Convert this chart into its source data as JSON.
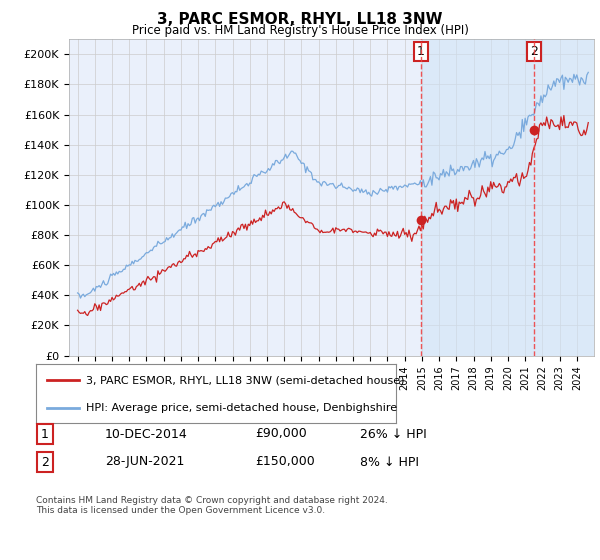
{
  "title": "3, PARC ESMOR, RHYL, LL18 3NW",
  "subtitle": "Price paid vs. HM Land Registry's House Price Index (HPI)",
  "background_color": "#ffffff",
  "grid_color": "#cccccc",
  "plot_bg_color": "#eaf0fb",
  "hpi_color": "#7aaadd",
  "price_color": "#cc2222",
  "sale1_date_num": 2014.94,
  "sale1_price": 90000,
  "sale2_date_num": 2021.5,
  "sale2_price": 150000,
  "sale1_label": "1",
  "sale2_label": "2",
  "vline_color": "#ee4444",
  "ylim": [
    0,
    210000
  ],
  "xlim_start": 1994.5,
  "xlim_end": 2025.0,
  "legend_label_price": "3, PARC ESMOR, RHYL, LL18 3NW (semi-detached house)",
  "legend_label_hpi": "HPI: Average price, semi-detached house, Denbighshire",
  "table_row1": [
    "1",
    "10-DEC-2014",
    "£90,000",
    "26% ↓ HPI"
  ],
  "table_row2": [
    "2",
    "28-JUN-2021",
    "£150,000",
    "8% ↓ HPI"
  ],
  "footnote": "Contains HM Land Registry data © Crown copyright and database right 2024.\nThis data is licensed under the Open Government Licence v3.0.",
  "yticks": [
    0,
    20000,
    40000,
    60000,
    80000,
    100000,
    120000,
    140000,
    160000,
    180000,
    200000
  ],
  "ytick_labels": [
    "£0",
    "£20K",
    "£40K",
    "£60K",
    "£80K",
    "£100K",
    "£120K",
    "£140K",
    "£160K",
    "£180K",
    "£200K"
  ]
}
